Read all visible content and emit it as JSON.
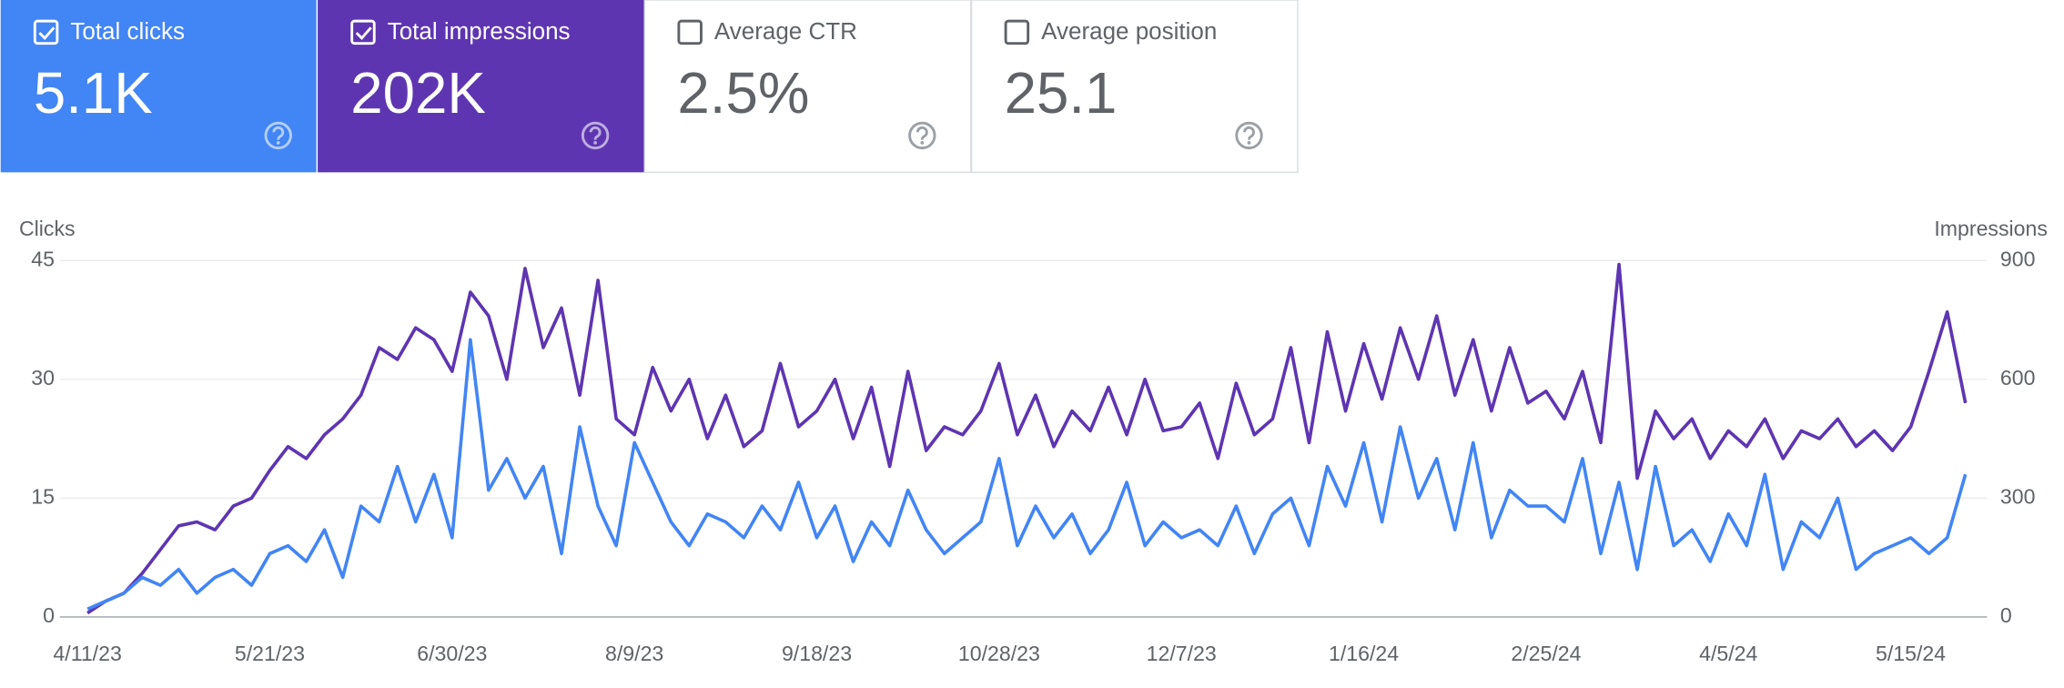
{
  "cards": [
    {
      "label": "Total clicks",
      "value": "5.1K",
      "checked": true,
      "color": "#4285f4"
    },
    {
      "label": "Total impressions",
      "value": "202K",
      "checked": true,
      "color": "#5e35b1"
    },
    {
      "label": "Average CTR",
      "value": "2.5%",
      "checked": false,
      "color": "#ffffff"
    },
    {
      "label": "Average position",
      "value": "25.1",
      "checked": false,
      "color": "#ffffff"
    }
  ],
  "chart_data": {
    "type": "line",
    "ylabel": "Clicks",
    "y2label": "Impressions",
    "ylim": [
      0,
      45
    ],
    "yticks": [
      0,
      15,
      30,
      45
    ],
    "y2lim": [
      0,
      900
    ],
    "y2ticks": [
      0,
      300,
      600,
      900
    ],
    "grid": true,
    "categories": [
      "4/11/23",
      null,
      null,
      null,
      null,
      null,
      null,
      null,
      null,
      null,
      "5/21/23",
      null,
      null,
      null,
      null,
      null,
      null,
      null,
      null,
      null,
      "6/30/23",
      null,
      null,
      null,
      null,
      null,
      null,
      null,
      null,
      null,
      "8/9/23",
      null,
      null,
      null,
      null,
      null,
      null,
      null,
      null,
      null,
      "9/18/23",
      null,
      null,
      null,
      null,
      null,
      null,
      null,
      null,
      null,
      "10/28/23",
      null,
      null,
      null,
      null,
      null,
      null,
      null,
      null,
      null,
      "12/7/23",
      null,
      null,
      null,
      null,
      null,
      null,
      null,
      null,
      null,
      "1/16/24",
      null,
      null,
      null,
      null,
      null,
      null,
      null,
      null,
      null,
      "2/25/24",
      null,
      null,
      null,
      null,
      null,
      null,
      null,
      null,
      null,
      "4/5/24",
      null,
      null,
      null,
      null,
      null,
      null,
      null,
      null,
      null,
      "5/15/24",
      null,
      null,
      null
    ],
    "series": [
      {
        "name": "Impressions",
        "color": "#5e35b1",
        "axis": "y2",
        "values": [
          10,
          40,
          60,
          110,
          170,
          230,
          240,
          220,
          280,
          300,
          370,
          430,
          400,
          460,
          500,
          560,
          680,
          650,
          730,
          700,
          620,
          820,
          760,
          600,
          880,
          680,
          780,
          560,
          850,
          500,
          460,
          630,
          520,
          600,
          450,
          560,
          430,
          470,
          640,
          480,
          520,
          600,
          450,
          580,
          380,
          620,
          420,
          480,
          460,
          520,
          640,
          460,
          560,
          430,
          520,
          470,
          580,
          460,
          600,
          470,
          480,
          540,
          400,
          590,
          460,
          500,
          680,
          440,
          720,
          520,
          690,
          550,
          730,
          600,
          760,
          560,
          700,
          520,
          680,
          540,
          570,
          500,
          620,
          440,
          890,
          350,
          520,
          450,
          500,
          400,
          470,
          430,
          500,
          400,
          470,
          450,
          500,
          430,
          470,
          420,
          480,
          620,
          770,
          540
        ]
      },
      {
        "name": "Clicks",
        "color": "#4285f4",
        "values": [
          1,
          2,
          3,
          5,
          4,
          6,
          3,
          5,
          6,
          4,
          8,
          9,
          7,
          11,
          5,
          14,
          12,
          19,
          12,
          18,
          10,
          35,
          16,
          20,
          15,
          19,
          8,
          24,
          14,
          9,
          22,
          17,
          12,
          9,
          13,
          12,
          10,
          14,
          11,
          17,
          10,
          14,
          7,
          12,
          9,
          16,
          11,
          8,
          10,
          12,
          20,
          9,
          14,
          10,
          13,
          8,
          11,
          17,
          9,
          12,
          10,
          11,
          9,
          14,
          8,
          13,
          15,
          9,
          19,
          14,
          22,
          12,
          24,
          15,
          20,
          11,
          22,
          10,
          16,
          14,
          14,
          12,
          20,
          8,
          17,
          6,
          19,
          9,
          11,
          7,
          13,
          9,
          18,
          6,
          12,
          10,
          15,
          6,
          8,
          9,
          10,
          8,
          10,
          18
        ]
      }
    ]
  }
}
